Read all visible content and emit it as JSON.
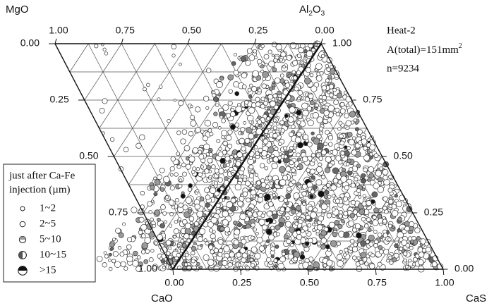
{
  "labels": {
    "mgo": "MgO",
    "al2o3": [
      "Al",
      "2",
      "O",
      "3"
    ],
    "cao": "CaO",
    "cas": "CaS"
  },
  "info": {
    "heat": "Heat-2",
    "area": [
      "A(total)=151mm",
      "2"
    ],
    "count": "n=9234"
  },
  "top_ticks": [
    "1.00",
    "0.75",
    "0.50",
    "0.25",
    "0.00"
  ],
  "left_ticks": [
    "0.00",
    "0.25",
    "0.50",
    "0.75",
    "1.00"
  ],
  "bottom_ticks": [
    "0.00",
    "0.25",
    "0.50",
    "0.75",
    "1.00"
  ],
  "right_ticks": [
    "1.00",
    "0.75",
    "0.50",
    "0.25",
    "0.00"
  ],
  "legend": {
    "title": [
      "just after Ca-Fe",
      "injection (µm)"
    ],
    "items": [
      "1~2",
      "2~5",
      "5~10",
      "10~15",
      ">15"
    ]
  }
}
